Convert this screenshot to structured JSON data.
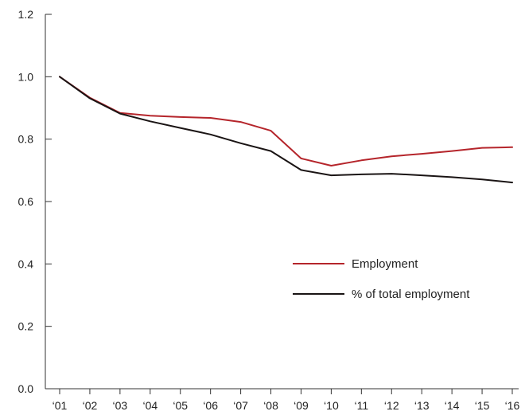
{
  "chart_data": {
    "type": "line",
    "title": "",
    "xlabel": "",
    "ylabel": "",
    "categories": [
      "‘01",
      "‘02",
      "‘03",
      "‘04",
      "‘05",
      "‘06",
      "‘07",
      "‘08",
      "‘09",
      "‘10",
      "‘11",
      "‘12",
      "‘13",
      "‘14",
      "‘15",
      "‘16"
    ],
    "ylim": [
      0,
      1.2
    ],
    "yticks": [
      "0.0",
      "0.2",
      "0.4",
      "0.6",
      "0.8",
      "1.0",
      "1.2"
    ],
    "grid": false,
    "legend_position": "center-right",
    "series": [
      {
        "name": "Employment",
        "color": "#b5252b",
        "values": [
          1.0,
          0.933,
          0.884,
          0.875,
          0.871,
          0.868,
          0.855,
          0.827,
          0.738,
          0.715,
          0.732,
          0.745,
          0.753,
          0.762,
          0.772,
          0.774
        ]
      },
      {
        "name": "% of total employment",
        "color": "#1a1414",
        "values": [
          1.0,
          0.931,
          0.882,
          0.857,
          0.836,
          0.815,
          0.787,
          0.762,
          0.701,
          0.684,
          0.687,
          0.689,
          0.684,
          0.678,
          0.671,
          0.661
        ]
      }
    ]
  }
}
